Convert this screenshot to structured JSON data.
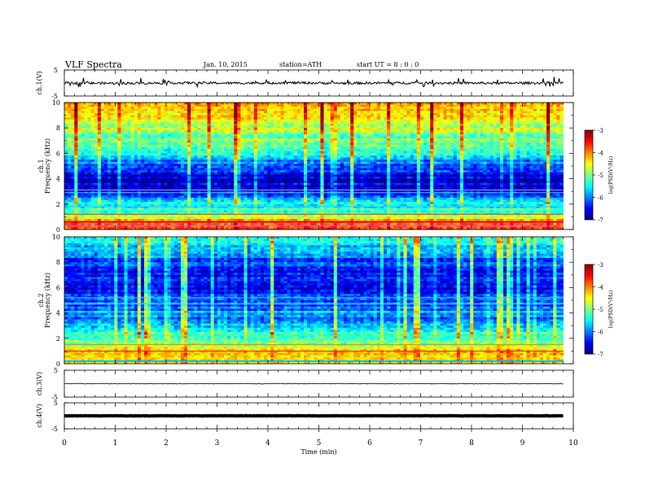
{
  "header": {
    "title": "VLF Spectra",
    "date": "Jan. 10, 2015",
    "station": "station=ATH",
    "start": "start  UT  =   8 : 0 : 0"
  },
  "chart_data": [
    {
      "type": "line",
      "panel": "ch1-waveform",
      "ylabel": "ch.1(V)",
      "ylim": [
        -5,
        5
      ],
      "yticks": [
        "5",
        "-5"
      ],
      "series": [
        {
          "values": [
            0,
            -0.1,
            0.05,
            -0.05,
            0.1,
            -0.08,
            0.02,
            0,
            -0.05,
            0.06
          ]
        }
      ],
      "color": "#000000"
    },
    {
      "type": "heatmap",
      "panel": "ch1-spectrogram",
      "ylabel_top": "ch.1",
      "ylabel": "Frequency  (kHz)",
      "ylim": [
        0,
        10
      ],
      "yticks": [
        "0",
        "2",
        "4",
        "6",
        "8",
        "10"
      ],
      "colorbar": {
        "label": "log(PSD(V²/Hz)",
        "range": [
          -7,
          -3
        ],
        "ticks": [
          "-3",
          "-4",
          "-5",
          "-6",
          "-7"
        ]
      },
      "profile_khz": [
        0,
        0.5,
        1,
        1.5,
        2,
        2.5,
        3,
        3.5,
        4,
        4.5,
        5,
        5.5,
        6,
        6.5,
        7,
        7.5,
        8,
        8.5,
        9,
        9.5,
        10
      ],
      "profile_logpsd": [
        -3.6,
        -3.9,
        -4.9,
        -5.3,
        -5.6,
        -6.3,
        -6.7,
        -6.9,
        -6.8,
        -6.6,
        -6.4,
        -6.0,
        -5.7,
        -5.5,
        -5.3,
        -5.1,
        -4.9,
        -4.7,
        -4.6,
        -4.5,
        -4.5
      ]
    },
    {
      "type": "heatmap",
      "panel": "ch2-spectrogram",
      "ylabel_top": "ch.2",
      "ylabel": "Frequency  (kHz)",
      "ylim": [
        0,
        10
      ],
      "yticks": [
        "0",
        "2",
        "4",
        "6",
        "8",
        "10"
      ],
      "colorbar": {
        "label": "log(PSD(V²/Hz)",
        "range": [
          -7,
          -3
        ],
        "ticks": [
          "-3",
          "-4",
          "-5",
          "-6",
          "-7"
        ]
      },
      "profile_khz": [
        0,
        0.5,
        1,
        1.5,
        2,
        2.5,
        3,
        3.5,
        4,
        4.5,
        5,
        5.5,
        6,
        6.5,
        7,
        7.5,
        8,
        8.5,
        9,
        9.5,
        10
      ],
      "profile_logpsd": [
        -4.4,
        -4.6,
        -4.4,
        -5.0,
        -5.3,
        -5.6,
        -5.9,
        -6.2,
        -6.0,
        -6.3,
        -6.2,
        -6.5,
        -6.7,
        -6.6,
        -6.6,
        -6.5,
        -6.4,
        -6.2,
        -6.0,
        -5.7,
        -5.5
      ]
    },
    {
      "type": "line",
      "panel": "ch3-waveform",
      "ylabel": "ch.3(V)",
      "ylim": [
        -5,
        5
      ],
      "yticks": [
        "5",
        "-5"
      ],
      "series": [
        {
          "values": [
            0,
            0,
            0,
            0,
            0,
            0,
            0,
            0,
            0,
            0
          ]
        }
      ],
      "color": "#000000"
    },
    {
      "type": "line",
      "panel": "ch4-waveform",
      "ylabel": "ch.4(V)",
      "ylim": [
        -5,
        5
      ],
      "yticks": [
        "5",
        "-5"
      ],
      "series": [
        {
          "values": [
            0,
            0,
            0,
            0,
            0,
            0,
            0,
            0,
            0,
            0
          ]
        }
      ],
      "color": "#000000"
    }
  ],
  "xaxis": {
    "label": "Time  (min)",
    "xlim": [
      0,
      10
    ],
    "data_end": 9.8,
    "ticks": [
      "0",
      "1",
      "2",
      "3",
      "4",
      "5",
      "6",
      "7",
      "8",
      "9",
      "10"
    ]
  }
}
